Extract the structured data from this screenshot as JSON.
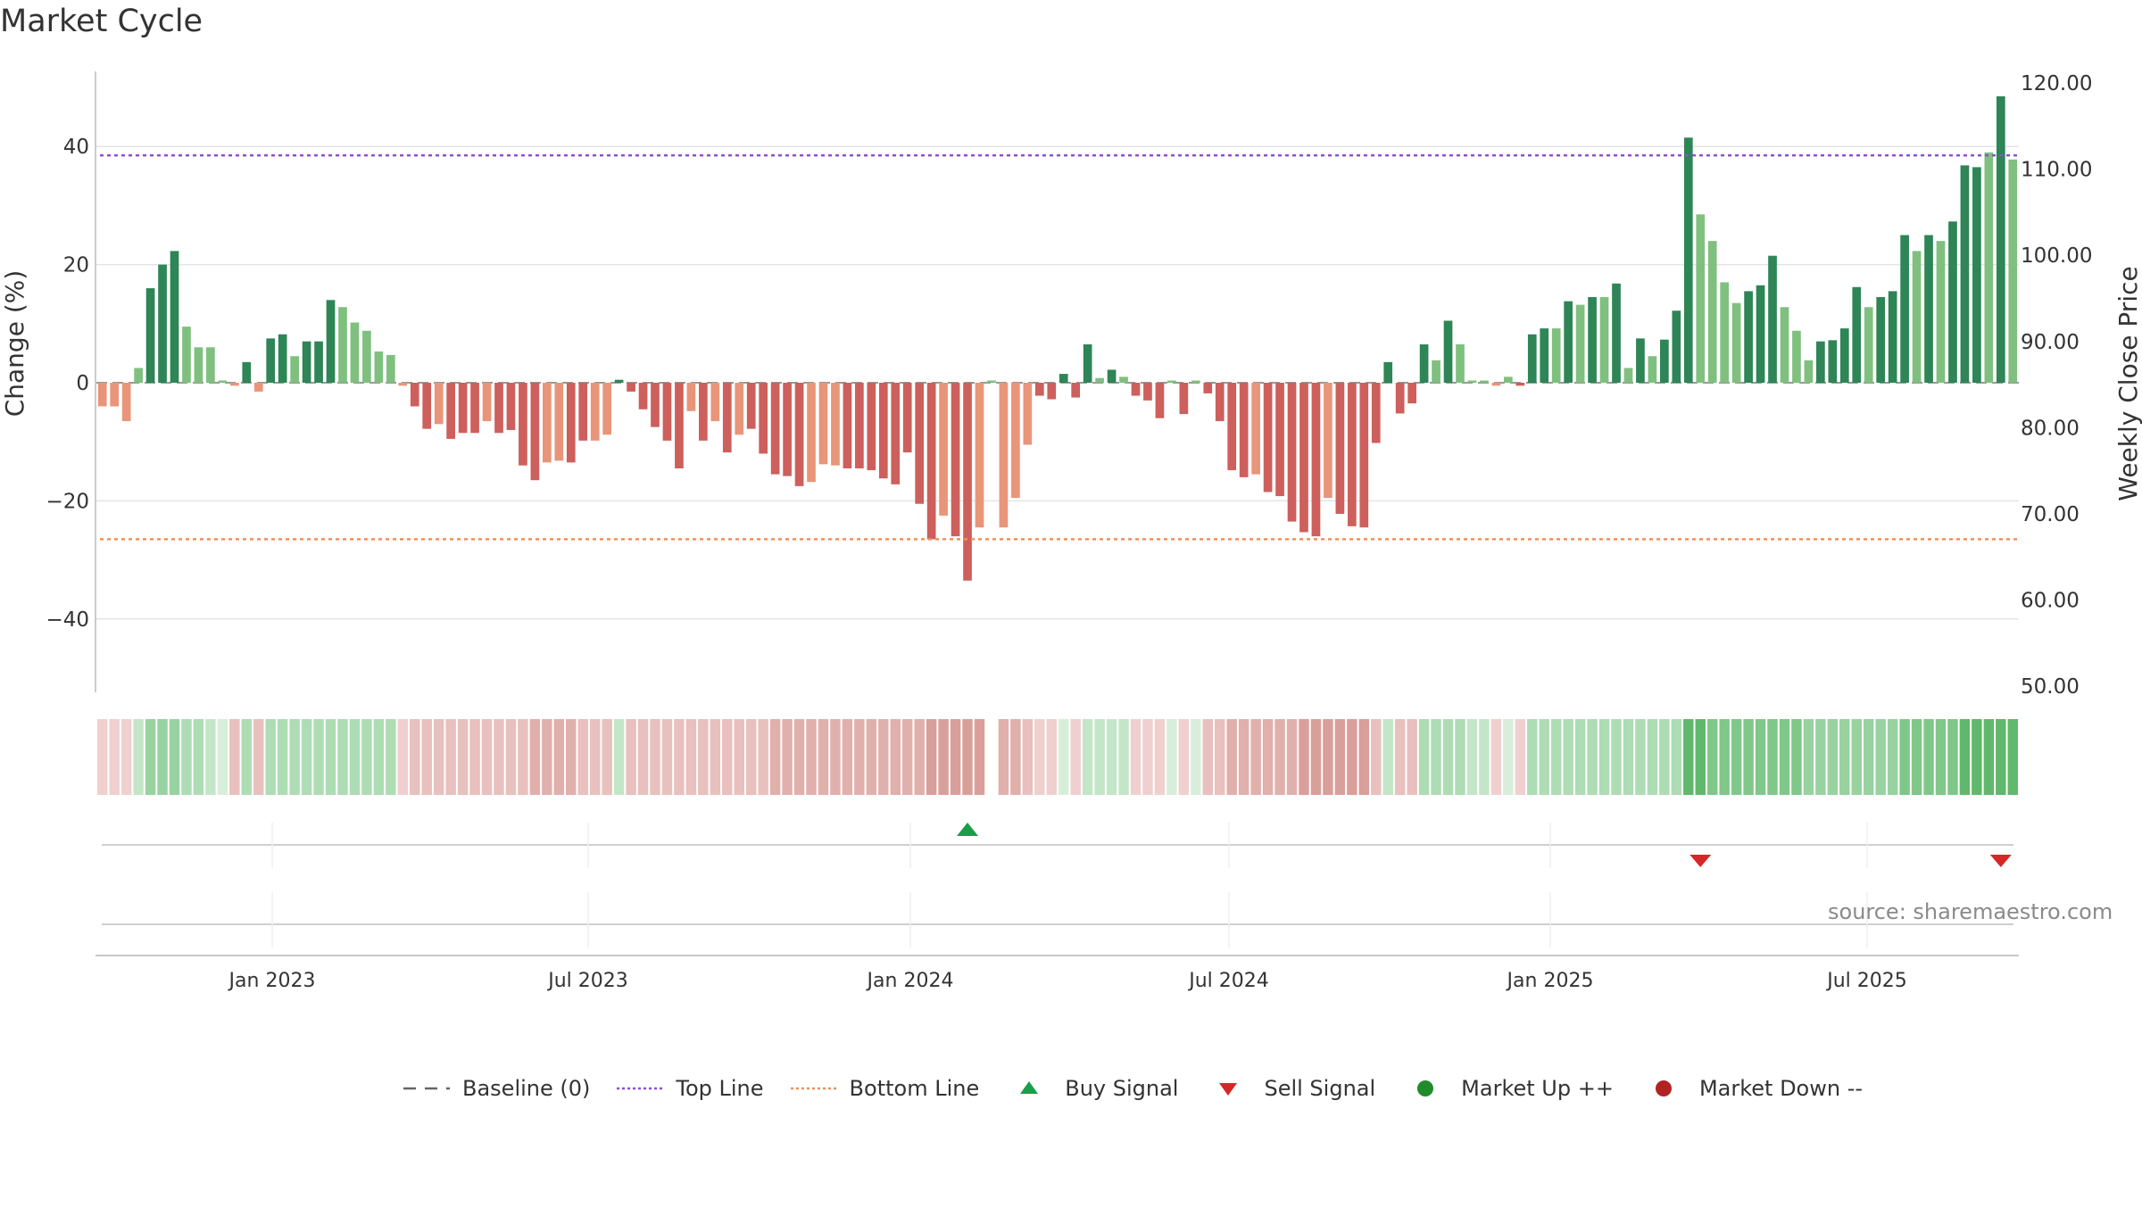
{
  "title": "Market Cycle",
  "source": "source: sharemaestro.com",
  "legend": [
    {
      "label": "Baseline (0)",
      "kind": "dash",
      "color": "#666666"
    },
    {
      "label": "Top Line",
      "kind": "dotted",
      "color": "#8a4fd0"
    },
    {
      "label": "Bottom Line",
      "kind": "dotted",
      "color": "#f0905a"
    },
    {
      "label": "Buy Signal",
      "kind": "triangle-up",
      "color": "#1a9e4a"
    },
    {
      "label": "Sell Signal",
      "kind": "triangle-down",
      "color": "#d62728"
    },
    {
      "label": "Market Up ++",
      "kind": "dot",
      "color": "#1f8b2a"
    },
    {
      "label": "Market Down --",
      "kind": "dot",
      "color": "#b22222"
    }
  ],
  "chart_data": {
    "type": "bar",
    "title": "Market Cycle",
    "ylabel": "Change (%)",
    "y2label": "Weekly Close Price",
    "ylim": [
      -52,
      53
    ],
    "y2lim": [
      50,
      120
    ],
    "yticks": [
      "40",
      "20",
      "0",
      "−20",
      "−40"
    ],
    "y2ticks": [
      "120.00",
      "110.00",
      "100.00",
      "90.00",
      "80.00",
      "70.00",
      "60.00",
      "50.00"
    ],
    "xticks": [
      "Jan 2023",
      "Jul 2023",
      "Jan 2024",
      "Jul 2024",
      "Jan 2025",
      "Jul 2025"
    ],
    "top_line": 38.5,
    "bottom_line": -26.5,
    "colors": {
      "up_strong": "#2e8555",
      "up_weak": "#7fc07f",
      "down_strong": "#cd5f5c",
      "down_weak": "#e8957a",
      "top_line": "#8a4fd0",
      "bottom_line": "#f0905a"
    },
    "values": [
      -4,
      -4,
      -6.5,
      2.5,
      16,
      20,
      22.3,
      9.5,
      6,
      6,
      0,
      -0.5,
      3.5,
      -1.5,
      7.5,
      8.2,
      4.5,
      7,
      7,
      14,
      12.8,
      10.2,
      8.8,
      5.3,
      4.7,
      -0.5,
      -4,
      -7.8,
      -7,
      -9.5,
      -8.5,
      -8.5,
      -6.5,
      -8.5,
      -8,
      -14,
      -16.5,
      -13.5,
      -13.2,
      -13.5,
      -9.8,
      -9.8,
      -8.8,
      0.5,
      -1.5,
      -4.5,
      -7.5,
      -9.8,
      -14.5,
      -4.8,
      -9.8,
      -6.5,
      -11.8,
      -8.8,
      -7.8,
      -12,
      -15.5,
      -15.8,
      -17.5,
      -16.8,
      -13.8,
      -14,
      -14.5,
      -14.5,
      -14.8,
      -16.2,
      -17.2,
      -11.8,
      -20.5,
      -26.5,
      -22.5,
      -26,
      -33.5,
      -24.5,
      0,
      -24.5,
      -19.5,
      -10.5,
      -2.2,
      -2.8,
      1.5,
      -2.5,
      6.5,
      0.8,
      2.2,
      1,
      -2.2,
      -3,
      -6,
      0,
      -5.3,
      0,
      -1.8,
      -6.5,
      -14.8,
      -16,
      -15.5,
      -18.5,
      -19.2,
      -23.5,
      -25.3,
      -26,
      -19.5,
      -22.2,
      -24.3,
      -24.5,
      -10.2,
      3.5,
      -5.2,
      -3.5,
      6.5,
      3.8,
      10.5,
      6.5,
      0,
      0,
      -0.5,
      1,
      -0.5,
      8.2,
      9.2,
      9.2,
      13.8,
      13.2,
      14.5,
      14.5,
      16.8,
      2.5,
      7.5,
      4.5,
      7.3,
      12.2,
      41.5,
      28.5,
      24,
      17,
      13.5,
      15.5,
      16.5,
      21.5,
      12.8,
      8.8,
      3.8,
      7,
      7.2,
      9.2,
      16.2,
      12.8,
      14.5,
      15.5,
      25,
      22.3,
      25,
      24,
      27.3,
      36.8,
      36.5,
      39,
      48.5,
      37.8
    ],
    "strength": [
      0,
      0,
      0,
      1,
      2,
      2,
      2,
      1,
      1,
      1,
      1,
      1,
      2,
      1,
      2,
      2,
      1,
      2,
      2,
      2,
      1,
      1,
      1,
      1,
      1,
      1,
      2,
      2,
      1,
      2,
      2,
      2,
      1,
      2,
      2,
      2,
      2,
      1,
      1,
      2,
      2,
      1,
      1,
      2,
      2,
      2,
      2,
      2,
      2,
      1,
      2,
      1,
      2,
      1,
      2,
      2,
      2,
      2,
      2,
      1,
      1,
      1,
      2,
      2,
      2,
      2,
      2,
      2,
      2,
      2,
      1,
      2,
      2,
      1,
      1,
      1,
      1,
      1,
      2,
      2,
      2,
      2,
      2,
      1,
      2,
      1,
      2,
      2,
      2,
      1,
      2,
      1,
      2,
      2,
      2,
      2,
      1,
      2,
      2,
      2,
      2,
      2,
      1,
      2,
      2,
      2,
      2,
      2,
      2,
      2,
      2,
      1,
      2,
      1,
      1,
      1,
      1,
      1,
      2,
      2,
      2,
      1,
      2,
      1,
      2,
      1,
      2,
      1,
      2,
      1,
      2,
      2,
      2,
      1,
      1,
      1,
      1,
      2,
      2,
      2,
      1,
      1,
      1,
      2,
      2,
      2,
      2,
      1,
      2,
      2,
      2,
      1,
      2,
      1,
      2,
      2,
      2,
      1,
      2,
      1
    ],
    "heat_levels": [
      1,
      1,
      1,
      2,
      4,
      4,
      4,
      3,
      3,
      2,
      1,
      2,
      3,
      2,
      3,
      3,
      3,
      3,
      3,
      3,
      3,
      3,
      3,
      3,
      3,
      1,
      2,
      2,
      2,
      2,
      2,
      2,
      2,
      2,
      2,
      2,
      3,
      3,
      3,
      3,
      2,
      2,
      2,
      2,
      2,
      2,
      2,
      2,
      2,
      2,
      2,
      2,
      2,
      2,
      2,
      2,
      3,
      3,
      3,
      3,
      3,
      3,
      3,
      3,
      3,
      3,
      3,
      3,
      3,
      4,
      4,
      4,
      4,
      4,
      -1,
      3,
      3,
      2,
      1,
      1,
      1,
      1,
      2,
      2,
      2,
      2,
      1,
      1,
      1,
      1,
      1,
      1,
      2,
      2,
      3,
      3,
      3,
      3,
      3,
      3,
      4,
      4,
      4,
      4,
      4,
      4,
      2,
      2,
      2,
      2,
      3,
      3,
      3,
      3,
      2,
      2,
      1,
      1,
      1,
      3,
      3,
      3,
      3,
      3,
      3,
      3,
      3,
      3,
      3,
      3,
      3,
      3,
      6,
      6,
      5,
      5,
      5,
      5,
      5,
      5,
      5,
      5,
      4,
      4,
      4,
      4,
      4,
      4,
      4,
      4,
      5,
      5,
      5,
      5,
      5,
      6,
      6,
      6,
      6,
      6
    ],
    "buy_signals": [
      72
    ],
    "sell_signals": [
      133,
      158
    ],
    "market_up": [],
    "market_down": []
  }
}
